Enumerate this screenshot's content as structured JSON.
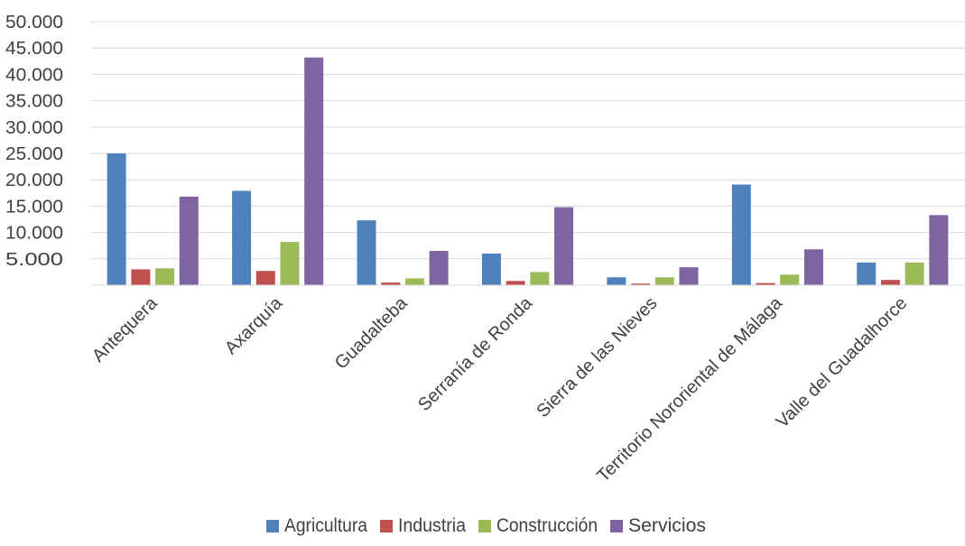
{
  "chart_data": {
    "type": "bar",
    "categories": [
      "Antequera",
      "Axarquía",
      "Guadalteba",
      "Serranía de Ronda",
      "Sierra de las Nieves",
      "Territorio Nororiental de Málaga",
      "Valle del Guadalhorce"
    ],
    "series": [
      {
        "name": "Agricultura",
        "color": "#4f81bd",
        "values": [
          25000,
          17900,
          12300,
          6000,
          1500,
          19100,
          4300
        ]
      },
      {
        "name": "Industria",
        "color": "#c0504d",
        "values": [
          3000,
          2700,
          500,
          800,
          300,
          400,
          1000
        ]
      },
      {
        "name": "Construcción",
        "color": "#9bbb59",
        "values": [
          3200,
          8200,
          1300,
          2500,
          1500,
          2000,
          4300
        ]
      },
      {
        "name": "Servicios",
        "color": "#8064a2",
        "values": [
          16800,
          43200,
          6500,
          14800,
          3400,
          6800,
          13300
        ]
      }
    ],
    "yticks": [
      "5.000",
      "10.000",
      "15.000",
      "20.000",
      "25.000",
      "30.000",
      "35.000",
      "40.000",
      "45.000",
      "50.000"
    ],
    "ytick_values": [
      5000,
      10000,
      15000,
      20000,
      25000,
      30000,
      35000,
      40000,
      45000,
      50000
    ],
    "ylim": [
      0,
      50000
    ],
    "grid": true,
    "legend_position": "bottom",
    "title": "",
    "xlabel": "",
    "ylabel": ""
  }
}
